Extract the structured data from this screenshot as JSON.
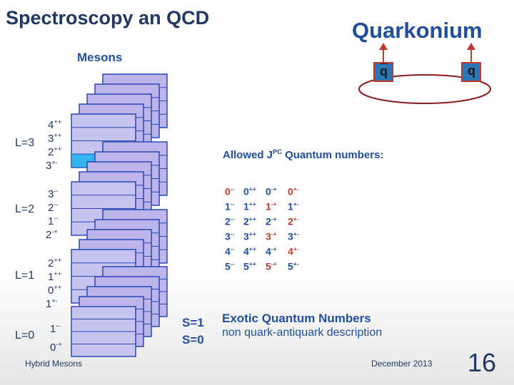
{
  "header": {
    "title": "Spectroscopy an QCD",
    "subtitle": "Quarkonium"
  },
  "mesons_label": "Mesons",
  "quarks": {
    "antiquark": "q",
    "quark": "q"
  },
  "levels": [
    {
      "label": "L=3",
      "states": [
        {
          "j": "4",
          "pc": "++"
        },
        {
          "j": "3",
          "pc": "++"
        },
        {
          "j": "2",
          "pc": "++"
        },
        {
          "j": "3",
          "pc": "+-"
        }
      ]
    },
    {
      "label": "L=2",
      "states": [
        {
          "j": "3",
          "pc": "--"
        },
        {
          "j": "2",
          "pc": "--"
        },
        {
          "j": "1",
          "pc": "--"
        },
        {
          "j": "2",
          "pc": "-+"
        }
      ]
    },
    {
      "label": "L=1",
      "states": [
        {
          "j": "2",
          "pc": "++"
        },
        {
          "j": "1",
          "pc": "++"
        },
        {
          "j": "0",
          "pc": "++"
        },
        {
          "j": "1",
          "pc": "+-"
        }
      ]
    },
    {
      "label": "L=0",
      "states": [
        {
          "j": "1",
          "pc": "--"
        },
        {
          "j": "0",
          "pc": "-+"
        }
      ]
    }
  ],
  "spin_labels": [
    "S=1",
    "S=0"
  ],
  "jpc": {
    "heading": {
      "pre": "Allowed J",
      "sup": "PC",
      "post": " Quantum numbers:"
    },
    "rows": [
      [
        {
          "j": "0",
          "pc": "--"
        },
        {
          "j": "0",
          "pc": "++"
        },
        {
          "j": "0",
          "pc": "-+"
        },
        {
          "j": "0",
          "pc": "+-"
        }
      ],
      [
        {
          "j": "1",
          "pc": "--"
        },
        {
          "j": "1",
          "pc": "++"
        },
        {
          "j": "1",
          "pc": "-+"
        },
        {
          "j": "1",
          "pc": "+-"
        }
      ],
      [
        {
          "j": "2",
          "pc": "--"
        },
        {
          "j": "2",
          "pc": "++"
        },
        {
          "j": "2",
          "pc": "-+"
        },
        {
          "j": "2",
          "pc": "+-"
        }
      ],
      [
        {
          "j": "3",
          "pc": "--"
        },
        {
          "j": "3",
          "pc": "++"
        },
        {
          "j": "3",
          "pc": "-+"
        },
        {
          "j": "3",
          "pc": "+-"
        }
      ],
      [
        {
          "j": "4",
          "pc": "--"
        },
        {
          "j": "4",
          "pc": "++"
        },
        {
          "j": "4",
          "pc": "-+"
        },
        {
          "j": "4",
          "pc": "+-"
        }
      ],
      [
        {
          "j": "5",
          "pc": "--"
        },
        {
          "j": "5",
          "pc": "++"
        },
        {
          "j": "5",
          "pc": "-+"
        },
        {
          "j": "5",
          "pc": "+-"
        }
      ]
    ]
  },
  "exotic": {
    "title": "Exotic Quantum Numbers",
    "description": "non quark-antiquark description"
  },
  "footer": {
    "left": "Hybrid Mesons",
    "date": "December 2013",
    "page": "16"
  }
}
